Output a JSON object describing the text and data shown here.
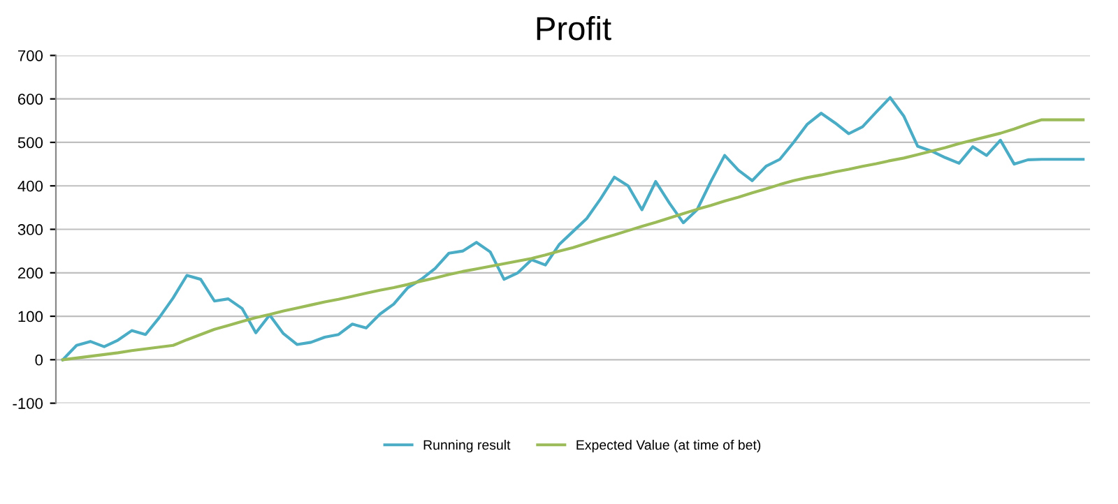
{
  "chart_data": {
    "type": "line",
    "title": "Profit",
    "categories": [
      null,
      null,
      null,
      null,
      null,
      null,
      null,
      null,
      null,
      null,
      null,
      null,
      null,
      null,
      null,
      null,
      null,
      null,
      null,
      null,
      null,
      null,
      null,
      null,
      null,
      null,
      null,
      null,
      null,
      null,
      null,
      null,
      null,
      null,
      null,
      null,
      null,
      null,
      null,
      null,
      null,
      null,
      null,
      null,
      null,
      null,
      null,
      null,
      null,
      null,
      null,
      null,
      null,
      null,
      null,
      null,
      null,
      null,
      null,
      null,
      null,
      null,
      null,
      null,
      null,
      null,
      null,
      null,
      null,
      null,
      null,
      null,
      null,
      null,
      null
    ],
    "series": [
      {
        "name": "Running result",
        "color": "#4bacc6",
        "values": [
          0,
          33,
          42,
          30,
          45,
          67,
          58,
          97,
          142,
          194,
          185,
          135,
          140,
          118,
          62,
          103,
          60,
          35,
          40,
          52,
          58,
          82,
          73,
          105,
          128,
          165,
          185,
          210,
          245,
          250,
          270,
          248,
          185,
          200,
          230,
          218,
          265,
          295,
          325,
          370,
          420,
          400,
          345,
          410,
          360,
          315,
          345,
          410,
          470,
          436,
          412,
          445,
          461,
          500,
          542,
          567,
          545,
          520,
          536,
          570,
          603,
          560,
          491,
          480,
          465,
          452,
          490,
          470,
          505,
          450,
          460,
          461,
          461,
          461,
          461
        ]
      },
      {
        "name": "Expected Value (at time of bet)",
        "color": "#9bbb59",
        "values": [
          0,
          4,
          8,
          12,
          16,
          21,
          25,
          29,
          33,
          46,
          58,
          70,
          79,
          88,
          97,
          104,
          112,
          119,
          126,
          133,
          139,
          146,
          153,
          160,
          166,
          173,
          181,
          188,
          196,
          203,
          209,
          215,
          221,
          227,
          233,
          241,
          250,
          258,
          268,
          278,
          287,
          297,
          307,
          316,
          326,
          336,
          346,
          355,
          365,
          374,
          384,
          393,
          403,
          412,
          419,
          425,
          432,
          438,
          445,
          451,
          458,
          464,
          472,
          480,
          488,
          497,
          505,
          513,
          521,
          531,
          542,
          552,
          552,
          552,
          552
        ]
      }
    ],
    "ylim": [
      -100,
      700
    ],
    "yticks": [
      -100,
      0,
      100,
      200,
      300,
      400,
      500,
      600,
      700
    ],
    "grid": "y",
    "legend": "bottom",
    "marker": "none",
    "line_style": "solid"
  }
}
